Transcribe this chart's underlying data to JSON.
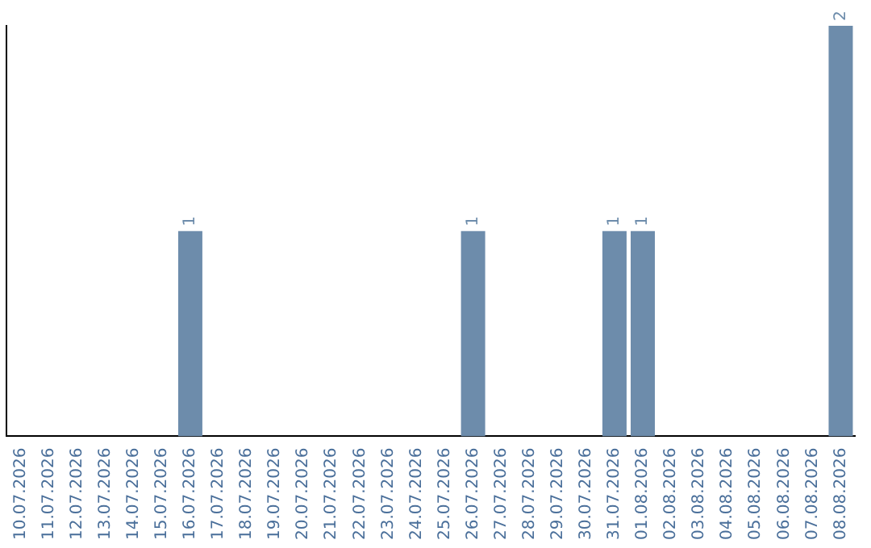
{
  "chart_data": {
    "type": "bar",
    "categories": [
      "10.07.2026",
      "11.07.2026",
      "12.07.2026",
      "13.07.2026",
      "14.07.2026",
      "15.07.2026",
      "16.07.2026",
      "17.07.2026",
      "18.07.2026",
      "19.07.2026",
      "20.07.2026",
      "21.07.2026",
      "22.07.2026",
      "23.07.2026",
      "24.07.2026",
      "25.07.2026",
      "26.07.2026",
      "27.07.2026",
      "28.07.2026",
      "29.07.2026",
      "30.07.2026",
      "31.07.2026",
      "01.08.2026",
      "02.08.2026",
      "03.08.2026",
      "04.08.2026",
      "05.08.2026",
      "06.08.2026",
      "07.08.2026",
      "08.08.2026"
    ],
    "values": [
      0,
      0,
      0,
      0,
      0,
      0,
      1,
      0,
      0,
      0,
      0,
      0,
      0,
      0,
      0,
      0,
      1,
      0,
      0,
      0,
      0,
      1,
      1,
      0,
      0,
      0,
      0,
      0,
      0,
      2
    ],
    "value_labels": [
      null,
      null,
      null,
      null,
      null,
      null,
      "1",
      null,
      null,
      null,
      null,
      null,
      null,
      null,
      null,
      null,
      "1",
      null,
      null,
      null,
      null,
      "1",
      "1",
      null,
      null,
      null,
      null,
      null,
      null,
      "2"
    ],
    "color": "#6d8cab",
    "ylim": [
      0,
      2
    ],
    "tick_labels": "x"
  }
}
